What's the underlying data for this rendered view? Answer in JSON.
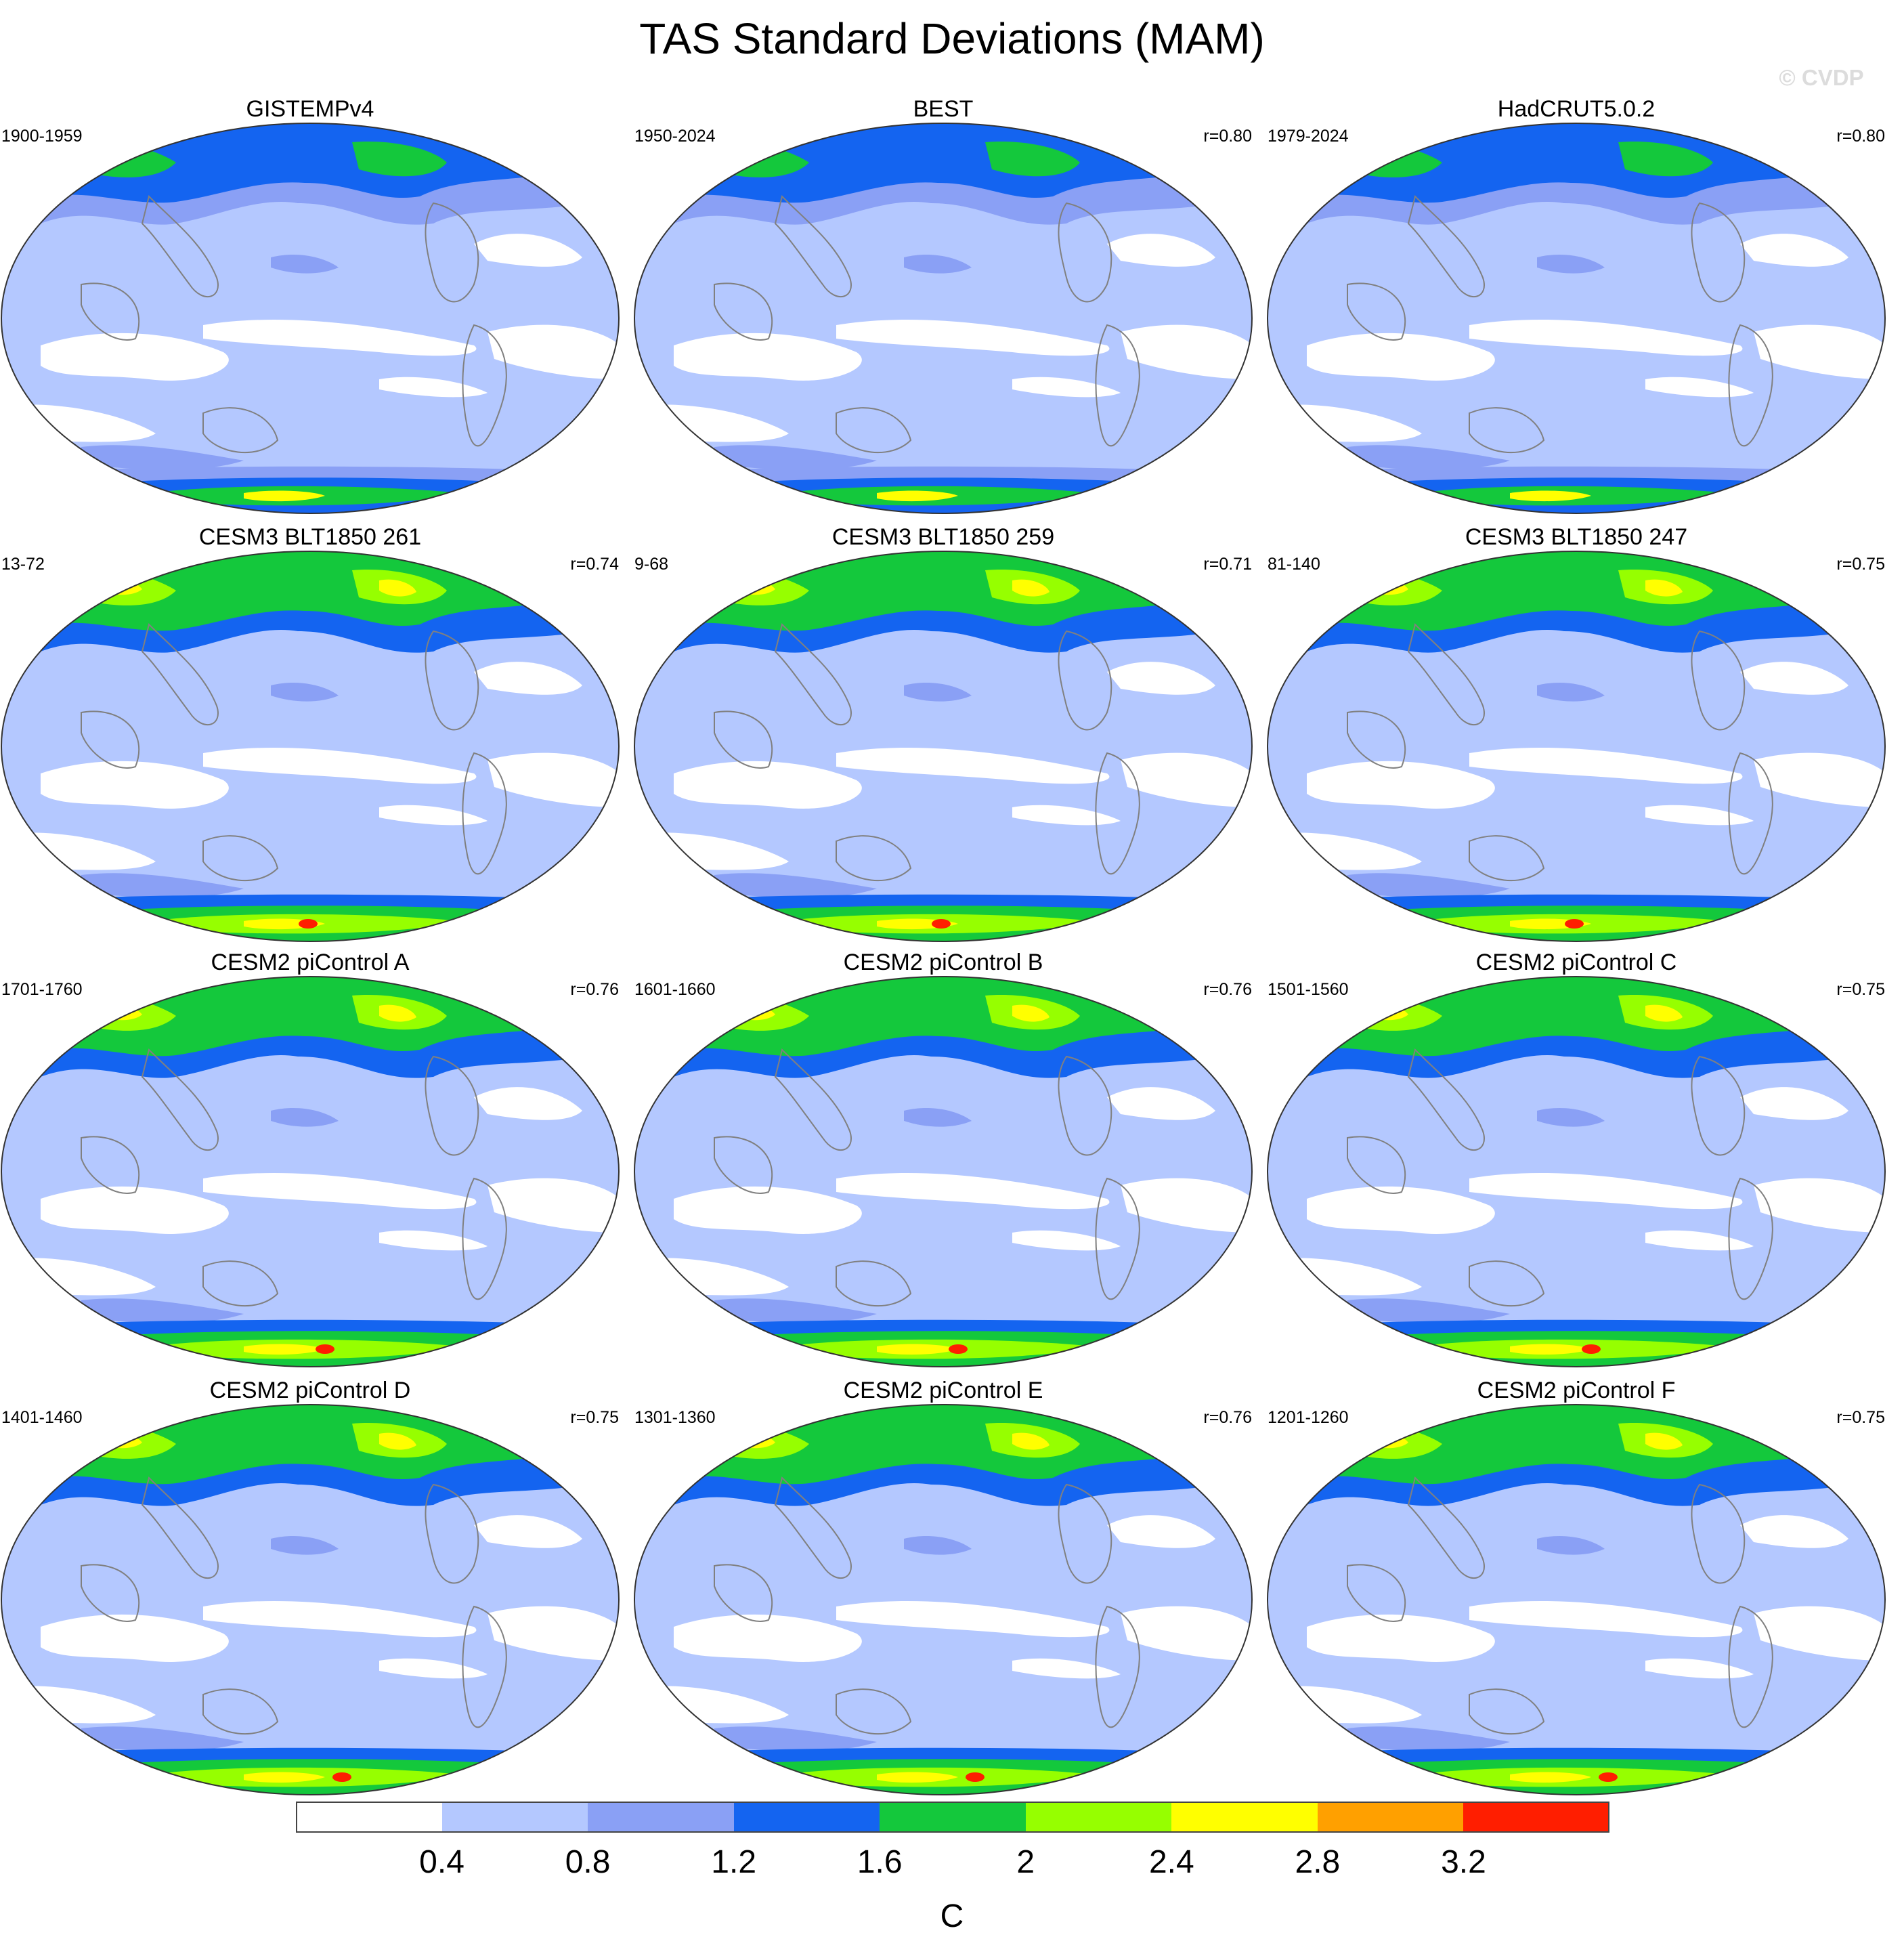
{
  "figure": {
    "title": "TAS Standard Deviations (MAM)",
    "watermark": "© CVDP"
  },
  "panels": [
    {
      "title": "GISTEMPv4",
      "period": "1900-1959",
      "r": ""
    },
    {
      "title": "BEST",
      "period": "1950-2024",
      "r": "r=0.80"
    },
    {
      "title": "HadCRUT5.0.2",
      "period": "1979-2024",
      "r": "r=0.80"
    },
    {
      "title": "CESM3 BLT1850 261",
      "period": "13-72",
      "r": "r=0.74"
    },
    {
      "title": "CESM3 BLT1850 259",
      "period": "9-68",
      "r": "r=0.71"
    },
    {
      "title": "CESM3 BLT1850 247",
      "period": "81-140",
      "r": "r=0.75"
    },
    {
      "title": "CESM2 piControl A",
      "period": "1701-1760",
      "r": "r=0.76"
    },
    {
      "title": "CESM2 piControl B",
      "period": "1601-1660",
      "r": "r=0.76"
    },
    {
      "title": "CESM2 piControl C",
      "period": "1501-1560",
      "r": "r=0.75"
    },
    {
      "title": "CESM2 piControl D",
      "period": "1401-1460",
      "r": "r=0.75"
    },
    {
      "title": "CESM2 piControl E",
      "period": "1301-1360",
      "r": "r=0.76"
    },
    {
      "title": "CESM2 piControl F",
      "period": "1201-1260",
      "r": "r=0.75"
    }
  ],
  "colorbar": {
    "units": "C",
    "labels": [
      "0.4",
      "0.8",
      "1.2",
      "1.6",
      "2",
      "2.4",
      "2.8",
      "3.2"
    ],
    "colors": [
      "#ffffff",
      "#b4c8ff",
      "#8aa0f5",
      "#1464f0",
      "#14c83c",
      "#96ff00",
      "#ffff00",
      "#ffa000",
      "#ff1e00"
    ]
  }
}
